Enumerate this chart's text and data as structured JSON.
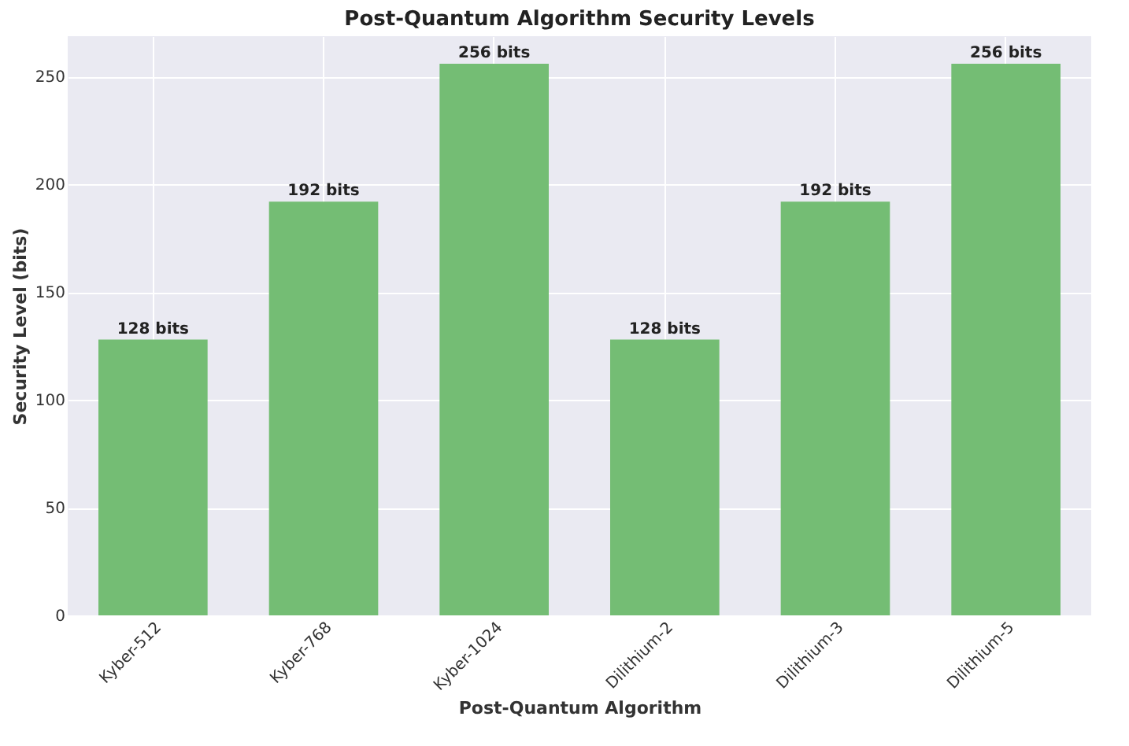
{
  "chart_data": {
    "type": "bar",
    "title": "Post-Quantum Algorithm Security Levels",
    "xlabel": "Post-Quantum Algorithm",
    "ylabel": "Security Level (bits)",
    "categories": [
      "Kyber-512",
      "Kyber-768",
      "Kyber-1024",
      "Dilithium-2",
      "Dilithium-3",
      "Dilithium-5"
    ],
    "values": [
      128,
      192,
      256,
      128,
      192,
      256
    ],
    "value_labels": [
      "128 bits",
      "192 bits",
      "256 bits",
      "128 bits",
      "192 bits",
      "256 bits"
    ],
    "color": "#74bd74",
    "ylim": [
      0,
      268.8
    ],
    "yticks": [
      0,
      50,
      100,
      150,
      200,
      250
    ],
    "grid": true
  }
}
